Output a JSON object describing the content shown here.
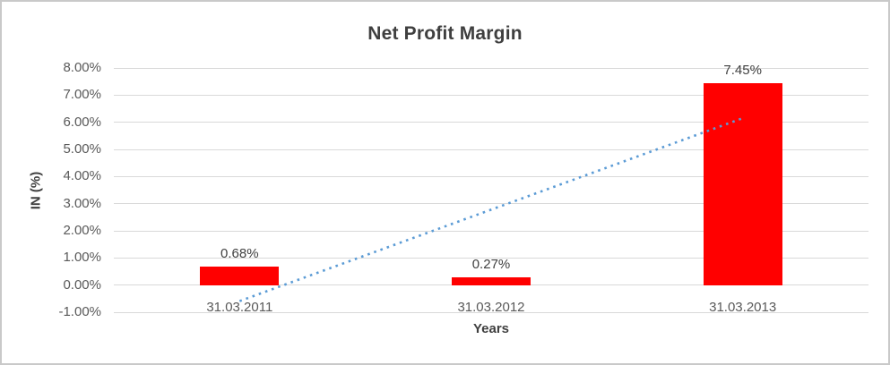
{
  "chart_data": {
    "type": "bar",
    "title": "Net Profit Margin",
    "xlabel": "Years",
    "ylabel": "IN (%)",
    "categories": [
      "31.03.2011",
      "31.03.2012",
      "31.03.2013"
    ],
    "values": [
      0.68,
      0.27,
      7.45
    ],
    "data_labels": [
      "0.68%",
      "0.27%",
      "7.45%"
    ],
    "yticks": [
      {
        "value": 8,
        "label": "8.00%"
      },
      {
        "value": 7,
        "label": "7.00%"
      },
      {
        "value": 6,
        "label": "6.00%"
      },
      {
        "value": 5,
        "label": "5.00%"
      },
      {
        "value": 4,
        "label": "4.00%"
      },
      {
        "value": 3,
        "label": "3.00%"
      },
      {
        "value": 2,
        "label": "2.00%"
      },
      {
        "value": 1,
        "label": "1.00%"
      },
      {
        "value": 0,
        "label": "0.00%"
      },
      {
        "value": -1,
        "label": "-1.00%"
      }
    ],
    "ylim": [
      -1,
      8
    ],
    "grid": true,
    "legend": "none",
    "bar_color": "#FF0000",
    "trendline": {
      "style": "dotted",
      "color": "#5B9BD5",
      "start_value": -0.59,
      "end_value": 6.15
    },
    "colors": {
      "grid": "#D9D9D9",
      "tick_text": "#595959",
      "title_text": "#3F3F3F",
      "label_text": "#404040",
      "frame_border": "#C9C9C9",
      "background": "#FFFFFF"
    }
  }
}
